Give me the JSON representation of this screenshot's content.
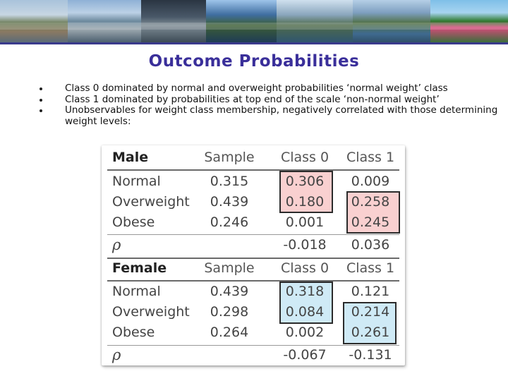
{
  "title": "Outcome Probabilities",
  "bullets": [
    "Class 0 dominated by normal and overweight probabilities ‘normal weight’ class",
    "Class 1 dominated by probabilities at top end of the scale ‘non-normal weight’",
    "Unobservables for weight class membership, negatively correlated with those determining weight levels:"
  ],
  "table": {
    "male": {
      "header": [
        "Male",
        "Sample",
        "Class 0",
        "Class 1"
      ],
      "rows": [
        [
          "Normal",
          "0.315",
          "0.306",
          "0.009"
        ],
        [
          "Overweight",
          "0.439",
          "0.180",
          "0.258"
        ],
        [
          "Obese",
          "0.246",
          "0.001",
          "0.245"
        ]
      ],
      "rho": [
        "ρ",
        "",
        "-0.018",
        "0.036"
      ]
    },
    "female": {
      "header": [
        "Female",
        "Sample",
        "Class 0",
        "Class 1"
      ],
      "rows": [
        [
          "Normal",
          "0.439",
          "0.318",
          "0.121"
        ],
        [
          "Overweight",
          "0.298",
          "0.084",
          "0.214"
        ],
        [
          "Obese",
          "0.264",
          "0.002",
          "0.261"
        ]
      ],
      "rho": [
        "ρ",
        "",
        "-0.067",
        "-0.131"
      ]
    },
    "highlight_colors": {
      "male": "#f9d0d0",
      "female": "#cfeaf6"
    }
  }
}
